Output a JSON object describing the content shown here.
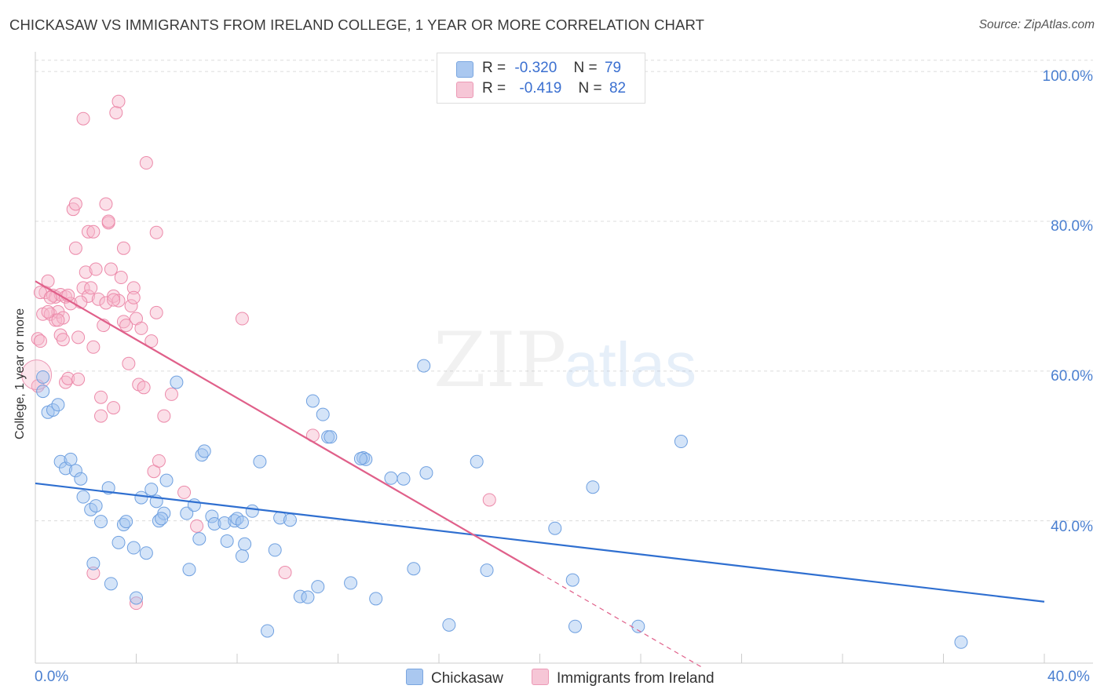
{
  "title": "CHICKASAW VS IMMIGRANTS FROM IRELAND COLLEGE, 1 YEAR OR MORE CORRELATION CHART",
  "source": "Source: ZipAtlas.com",
  "watermark": {
    "zip": "ZIP",
    "atlas": "atlas"
  },
  "legend": {
    "rows": [
      {
        "r_label": "R =",
        "r_value": "-0.320",
        "n_label": "N =",
        "n_value": "79",
        "color": "#aac8f0"
      },
      {
        "r_label": "R =",
        "r_value": "-0.419",
        "n_label": "N =",
        "n_value": "82",
        "color": "#f6b7cb"
      }
    ]
  },
  "bottom_legend": [
    {
      "label": "Chickasaw",
      "color": "#aac8f0"
    },
    {
      "label": "Immigrants from Ireland",
      "color": "#f6b7cb"
    }
  ],
  "chart_data": {
    "type": "scatter",
    "title": "CHICKASAW VS IMMIGRANTS FROM IRELAND COLLEGE, 1 YEAR OR MORE CORRELATION CHART",
    "xlabel": "",
    "ylabel": "College, 1 year or more",
    "xlim": [
      0,
      40
    ],
    "ylim": [
      21,
      102
    ],
    "x_tick_labels": [
      "0.0%",
      "40.0%"
    ],
    "y_ticks": [
      40,
      60,
      80,
      100
    ],
    "y_tick_labels": [
      "40.0%",
      "60.0%",
      "80.0%",
      "100.0%"
    ],
    "grid": true,
    "series": [
      {
        "name": "Chickasaw",
        "color": "#6fa0e0",
        "fill": "rgba(160,196,240,0.45)",
        "points": [
          [
            0.3,
            59.2
          ],
          [
            0.3,
            57.3
          ],
          [
            0.5,
            54.5
          ],
          [
            0.7,
            54.8
          ],
          [
            0.9,
            55.5
          ],
          [
            1.0,
            47.9
          ],
          [
            1.2,
            47.0
          ],
          [
            1.4,
            48.2
          ],
          [
            1.6,
            46.7
          ],
          [
            1.8,
            45.6
          ],
          [
            1.9,
            43.2
          ],
          [
            2.2,
            41.5
          ],
          [
            2.3,
            34.3
          ],
          [
            2.6,
            39.9
          ],
          [
            2.9,
            44.4
          ],
          [
            3.0,
            31.6
          ],
          [
            3.3,
            37.1
          ],
          [
            3.5,
            39.5
          ],
          [
            3.6,
            39.9
          ],
          [
            3.9,
            36.4
          ],
          [
            4.0,
            29.7
          ],
          [
            4.2,
            43.1
          ],
          [
            4.4,
            35.7
          ],
          [
            4.6,
            44.2
          ],
          [
            4.8,
            42.6
          ],
          [
            4.9,
            40.0
          ],
          [
            5.1,
            41.0
          ],
          [
            5.2,
            45.4
          ],
          [
            5.6,
            58.5
          ],
          [
            6.0,
            41.0
          ],
          [
            6.1,
            33.5
          ],
          [
            6.3,
            42.1
          ],
          [
            6.5,
            37.6
          ],
          [
            6.6,
            48.8
          ],
          [
            6.7,
            49.3
          ],
          [
            7.0,
            40.6
          ],
          [
            7.1,
            39.6
          ],
          [
            7.5,
            39.7
          ],
          [
            7.6,
            37.3
          ],
          [
            7.9,
            40.0
          ],
          [
            8.0,
            40.3
          ],
          [
            8.2,
            35.3
          ],
          [
            8.3,
            36.9
          ],
          [
            8.6,
            41.3
          ],
          [
            8.9,
            47.9
          ],
          [
            9.2,
            25.3
          ],
          [
            9.5,
            36.1
          ],
          [
            9.7,
            40.4
          ],
          [
            10.1,
            40.1
          ],
          [
            10.5,
            29.9
          ],
          [
            10.8,
            29.8
          ],
          [
            11.0,
            56.0
          ],
          [
            11.2,
            31.2
          ],
          [
            11.4,
            54.2
          ],
          [
            11.6,
            51.2
          ],
          [
            11.7,
            51.2
          ],
          [
            12.5,
            31.7
          ],
          [
            13.0,
            48.4
          ],
          [
            13.1,
            48.2
          ],
          [
            13.5,
            29.6
          ],
          [
            14.1,
            45.7
          ],
          [
            14.6,
            45.6
          ],
          [
            15.0,
            33.6
          ],
          [
            15.4,
            60.7
          ],
          [
            15.5,
            46.4
          ],
          [
            16.4,
            26.1
          ],
          [
            17.5,
            47.9
          ],
          [
            17.9,
            33.4
          ],
          [
            20.6,
            39.0
          ],
          [
            21.3,
            32.1
          ],
          [
            21.4,
            25.9
          ],
          [
            22.1,
            44.5
          ],
          [
            23.9,
            25.9
          ],
          [
            25.6,
            50.6
          ],
          [
            36.7,
            23.8
          ],
          [
            8.2,
            39.8
          ],
          [
            2.4,
            42.0
          ],
          [
            5.0,
            40.3
          ],
          [
            12.9,
            48.3
          ]
        ]
      },
      {
        "name": "Immigrants from Ireland",
        "color": "#ec8aaa",
        "fill": "rgba(246,183,203,0.45)",
        "points": [
          [
            0.1,
            64.3
          ],
          [
            0.2,
            64.0
          ],
          [
            0.3,
            67.6
          ],
          [
            0.4,
            70.5
          ],
          [
            0.5,
            72.0
          ],
          [
            0.6,
            67.6
          ],
          [
            0.7,
            70.1
          ],
          [
            0.8,
            69.9
          ],
          [
            0.8,
            66.8
          ],
          [
            0.9,
            67.9
          ],
          [
            1.0,
            70.2
          ],
          [
            1.0,
            64.8
          ],
          [
            1.1,
            67.1
          ],
          [
            1.1,
            64.2
          ],
          [
            1.2,
            58.5
          ],
          [
            1.2,
            69.9
          ],
          [
            1.3,
            59.0
          ],
          [
            1.4,
            69.0
          ],
          [
            1.5,
            81.6
          ],
          [
            1.6,
            82.3
          ],
          [
            1.6,
            76.4
          ],
          [
            1.7,
            64.5
          ],
          [
            1.7,
            58.9
          ],
          [
            1.9,
            93.7
          ],
          [
            1.9,
            71.1
          ],
          [
            2.0,
            73.2
          ],
          [
            2.1,
            78.6
          ],
          [
            2.1,
            70.0
          ],
          [
            2.2,
            71.1
          ],
          [
            2.3,
            78.6
          ],
          [
            2.3,
            63.2
          ],
          [
            2.4,
            73.6
          ],
          [
            2.5,
            69.6
          ],
          [
            2.6,
            56.5
          ],
          [
            2.6,
            54.0
          ],
          [
            2.7,
            66.1
          ],
          [
            2.8,
            69.1
          ],
          [
            2.8,
            82.3
          ],
          [
            2.9,
            79.8
          ],
          [
            2.9,
            80.0
          ],
          [
            3.0,
            73.6
          ],
          [
            3.1,
            55.1
          ],
          [
            3.1,
            70.0
          ],
          [
            3.2,
            94.5
          ],
          [
            3.3,
            69.4
          ],
          [
            3.3,
            96.0
          ],
          [
            3.4,
            72.5
          ],
          [
            3.5,
            76.4
          ],
          [
            3.5,
            66.6
          ],
          [
            3.6,
            66.1
          ],
          [
            3.7,
            61.0
          ],
          [
            3.8,
            68.7
          ],
          [
            3.9,
            71.1
          ],
          [
            3.9,
            69.8
          ],
          [
            4.0,
            67.0
          ],
          [
            4.1,
            58.2
          ],
          [
            4.2,
            65.7
          ],
          [
            4.3,
            57.8
          ],
          [
            4.4,
            87.8
          ],
          [
            4.6,
            64.0
          ],
          [
            4.7,
            46.6
          ],
          [
            4.8,
            67.8
          ],
          [
            4.8,
            78.5
          ],
          [
            4.9,
            48.0
          ],
          [
            5.1,
            54.0
          ],
          [
            5.4,
            56.9
          ],
          [
            5.9,
            43.8
          ],
          [
            6.4,
            39.3
          ],
          [
            2.3,
            33.0
          ],
          [
            4.0,
            29.0
          ],
          [
            8.2,
            67.0
          ],
          [
            9.9,
            33.1
          ],
          [
            11.0,
            51.4
          ],
          [
            18.0,
            42.8
          ],
          [
            0.2,
            70.5
          ],
          [
            0.6,
            69.8
          ],
          [
            1.3,
            70.1
          ],
          [
            0.9,
            66.8
          ],
          [
            1.8,
            69.2
          ],
          [
            3.1,
            69.5
          ],
          [
            0.5,
            67.9
          ],
          [
            0.1,
            58.0
          ]
        ]
      }
    ],
    "trend_lines": [
      {
        "series": "Chickasaw",
        "x": [
          0,
          40
        ],
        "y": [
          45.0,
          29.2
        ],
        "color": "#2f6fd0"
      },
      {
        "series": "Immigrants from Ireland",
        "x": [
          0,
          20
        ],
        "y": [
          72.0,
          33.0
        ],
        "color": "#e0608a",
        "dashed_extension": {
          "x": [
            20,
            26.5
          ],
          "y": [
            33.0,
            20.3
          ]
        }
      }
    ]
  }
}
